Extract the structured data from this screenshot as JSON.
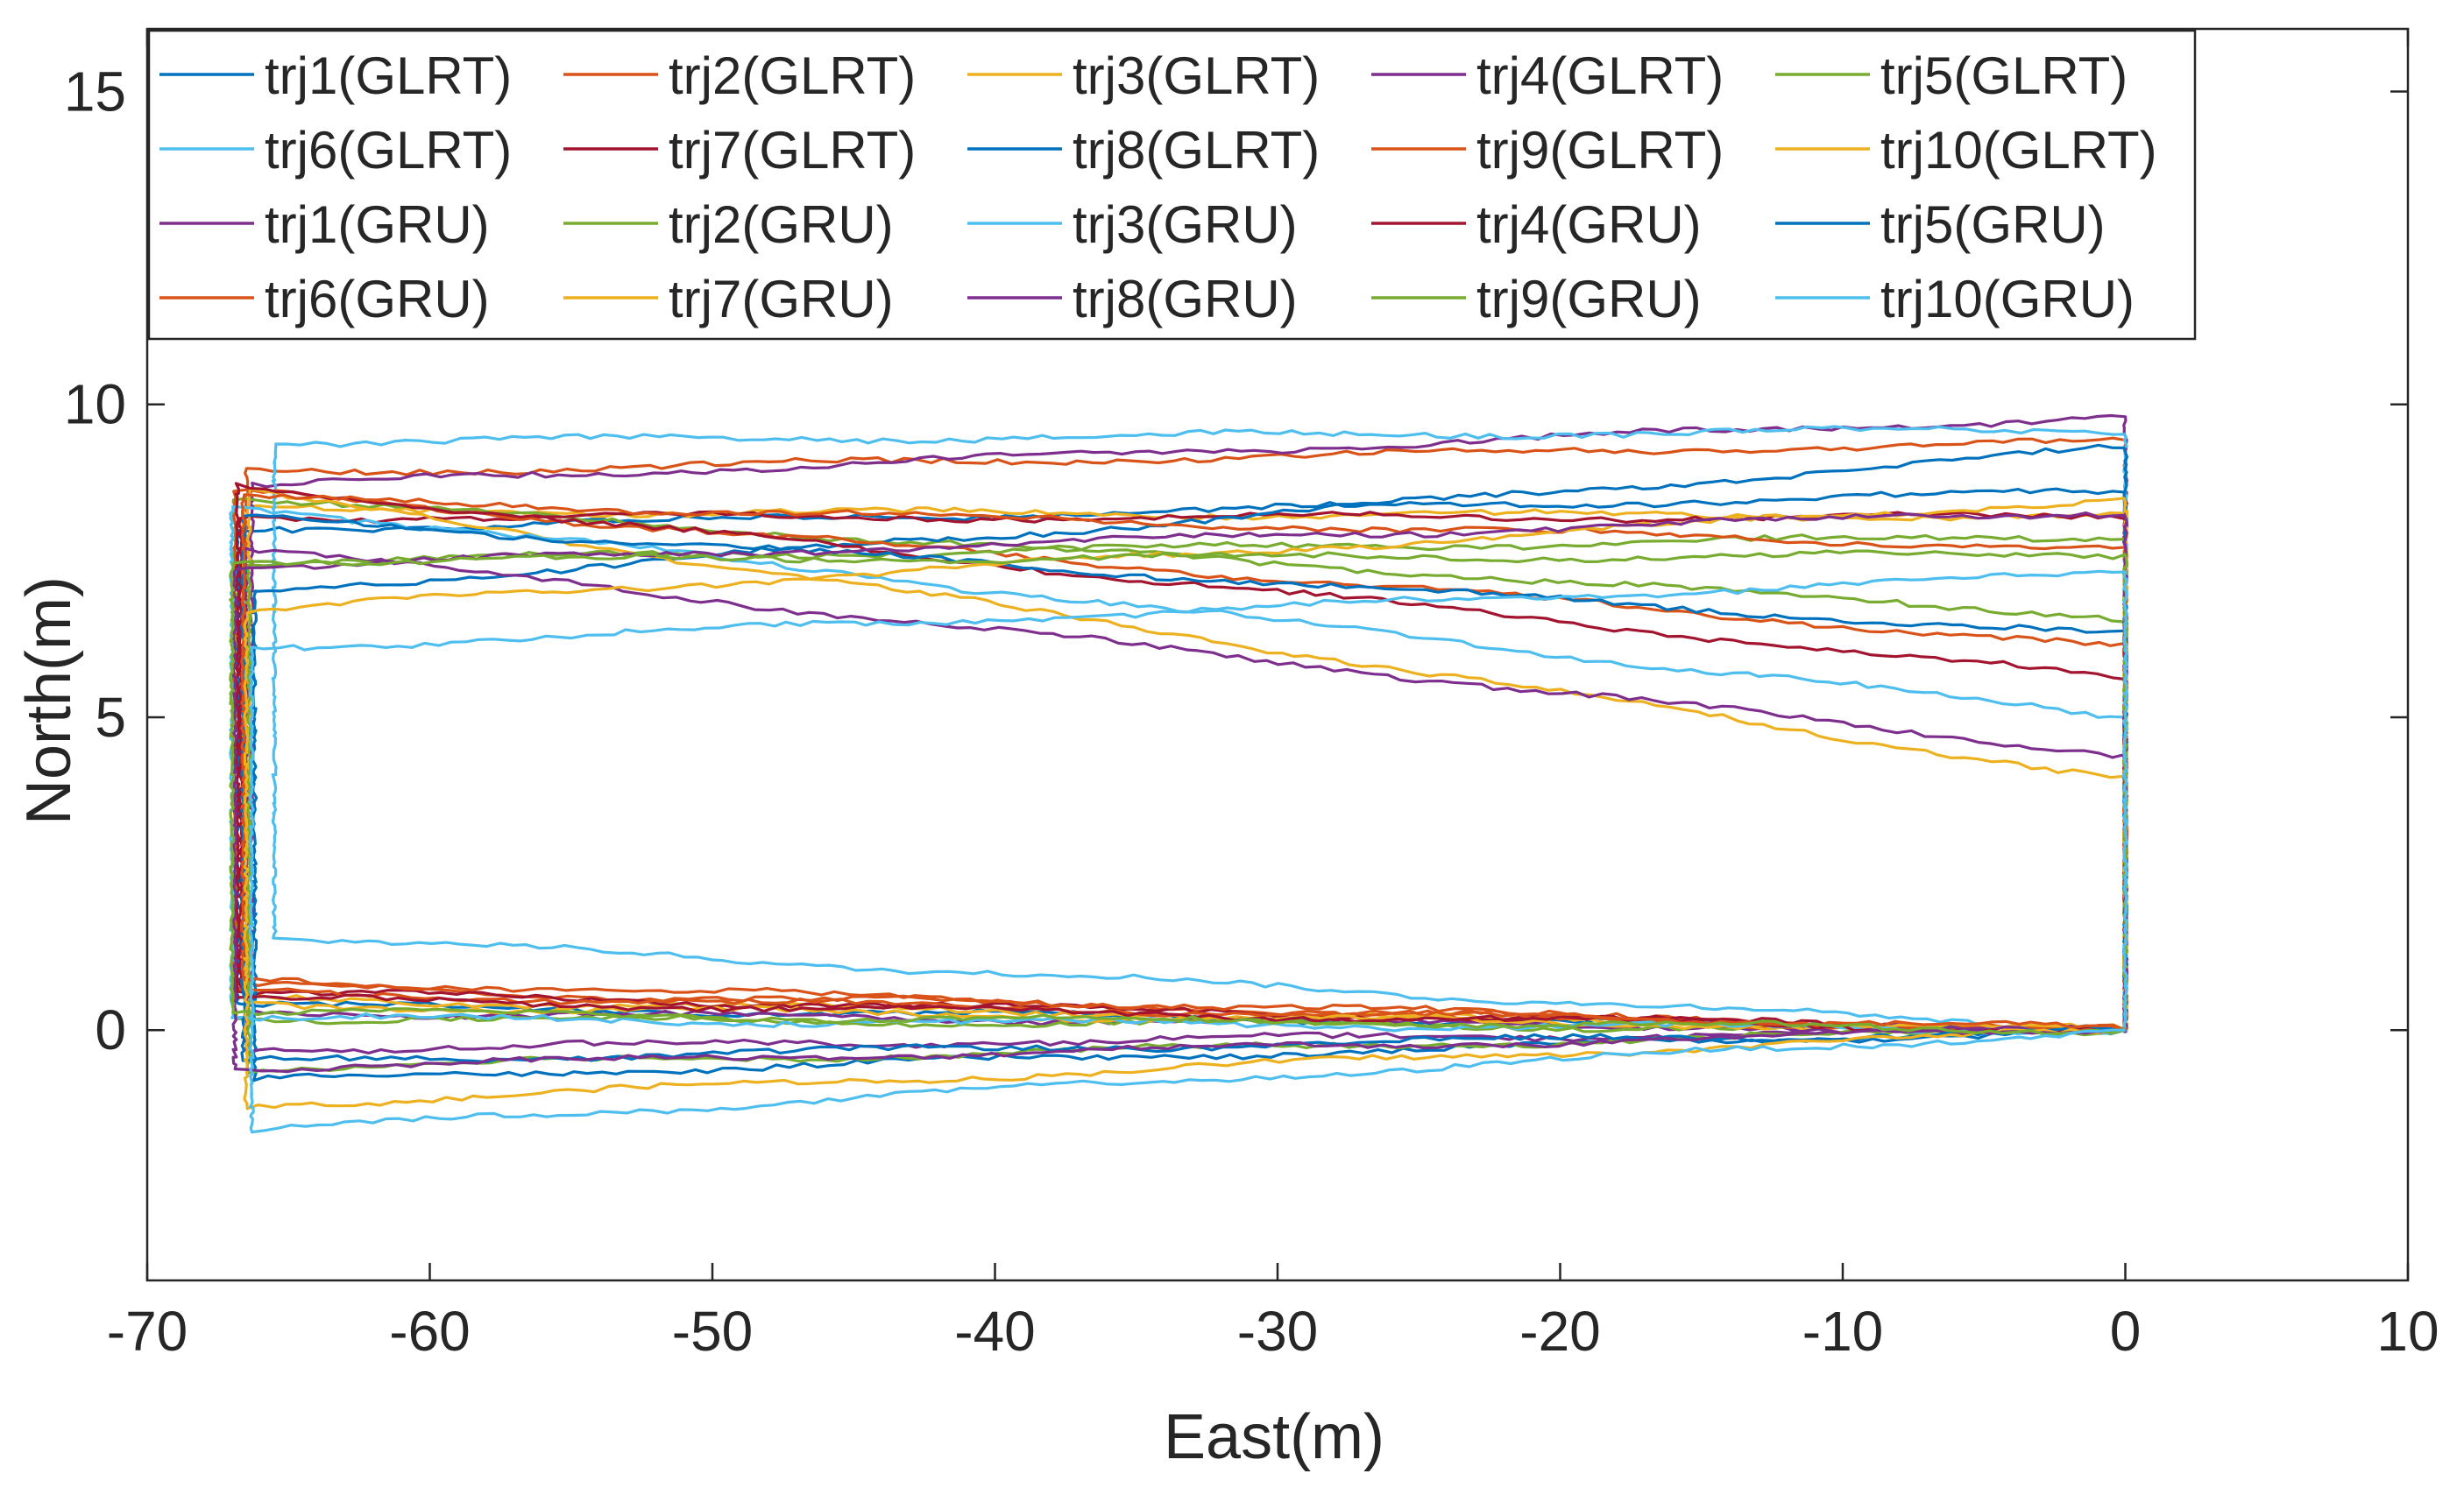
{
  "chart_data": {
    "type": "line",
    "title": "",
    "xlabel": "East(m)",
    "ylabel": "North(m)",
    "xlim": [
      -70,
      10
    ],
    "ylim": [
      -4,
      16
    ],
    "xticks": [
      -70,
      -60,
      -50,
      -40,
      -30,
      -20,
      -10,
      0,
      10
    ],
    "yticks": [
      0,
      5,
      10,
      15
    ],
    "xtick_labels": [
      "-70",
      "-60",
      "-50",
      "-40",
      "-30",
      "-20",
      "-10",
      "0",
      "10"
    ],
    "ytick_labels": [
      "0",
      "5",
      "10",
      "15"
    ],
    "grid": false,
    "legend_position": "top-left",
    "legend_columns": 5,
    "series": [
      {
        "name": "trj1(GLRT)",
        "color": "#0072BD",
        "points": [
          [
            0,
            0
          ],
          [
            0,
            8.6
          ],
          [
            -66.8,
            8.0
          ],
          [
            -66.8,
            0.4
          ],
          [
            0,
            0
          ]
        ]
      },
      {
        "name": "trj2(GLRT)",
        "color": "#D95319",
        "points": [
          [
            0,
            0
          ],
          [
            0,
            9.4
          ],
          [
            -66.5,
            8.9
          ],
          [
            -66.5,
            0.7
          ],
          [
            0,
            0
          ]
        ]
      },
      {
        "name": "trj3(GLRT)",
        "color": "#EDB120",
        "points": [
          [
            0,
            0
          ],
          [
            0,
            8.2
          ],
          [
            -66.6,
            8.3
          ],
          [
            -66.6,
            0.5
          ],
          [
            0,
            0
          ]
        ]
      },
      {
        "name": "trj4(GLRT)",
        "color": "#7E2F8E",
        "points": [
          [
            0,
            0
          ],
          [
            0,
            9.8
          ],
          [
            -66.3,
            8.7
          ],
          [
            -66.3,
            0.3
          ],
          [
            0,
            0
          ]
        ]
      },
      {
        "name": "trj5(GLRT)",
        "color": "#77AC30",
        "points": [
          [
            0,
            0
          ],
          [
            0,
            6.6
          ],
          [
            -66.9,
            8.5
          ],
          [
            -66.9,
            0.2
          ],
          [
            0,
            0
          ]
        ]
      },
      {
        "name": "trj6(GLRT)",
        "color": "#4DBEEE",
        "points": [
          [
            0,
            0
          ],
          [
            0,
            9.6
          ],
          [
            -65.5,
            9.4
          ],
          [
            -65.5,
            1.5
          ],
          [
            0,
            0
          ]
        ]
      },
      {
        "name": "trj7(GLRT)",
        "color": "#A2142F",
        "points": [
          [
            0,
            0
          ],
          [
            0,
            8.2
          ],
          [
            -66.7,
            8.2
          ],
          [
            -66.7,
            0.6
          ],
          [
            0,
            0
          ]
        ]
      },
      {
        "name": "trj8(GLRT)",
        "color": "#0072BD",
        "points": [
          [
            0,
            0
          ],
          [
            0,
            9.3
          ],
          [
            -66.2,
            7.0
          ],
          [
            -66.2,
            -0.8
          ],
          [
            0,
            0
          ]
        ]
      },
      {
        "name": "trj9(GLRT)",
        "color": "#D95319",
        "points": [
          [
            0,
            0
          ],
          [
            0,
            6.1
          ],
          [
            -66.9,
            8.6
          ],
          [
            -66.9,
            0.6
          ],
          [
            0,
            0
          ]
        ]
      },
      {
        "name": "trj10(GLRT)",
        "color": "#EDB120",
        "points": [
          [
            0,
            0
          ],
          [
            0,
            4.0
          ],
          [
            -66.4,
            8.6
          ],
          [
            -66.4,
            0.4
          ],
          [
            0,
            0
          ]
        ]
      },
      {
        "name": "trj1(GRU)",
        "color": "#7E2F8E",
        "points": [
          [
            0,
            0
          ],
          [
            0,
            4.4
          ],
          [
            -66.5,
            7.7
          ],
          [
            -66.5,
            -0.3
          ],
          [
            0,
            0
          ]
        ]
      },
      {
        "name": "trj2(GRU)",
        "color": "#77AC30",
        "points": [
          [
            0,
            0
          ],
          [
            0,
            7.9
          ],
          [
            -66.4,
            7.5
          ],
          [
            -66.4,
            -0.6
          ],
          [
            0,
            0
          ]
        ]
      },
      {
        "name": "trj3(GRU)",
        "color": "#4DBEEE",
        "points": [
          [
            0,
            0
          ],
          [
            0,
            5.0
          ],
          [
            -67.0,
            8.4
          ],
          [
            -67.0,
            0.2
          ],
          [
            0,
            0
          ]
        ]
      },
      {
        "name": "trj4(GRU)",
        "color": "#A2142F",
        "points": [
          [
            0,
            0
          ],
          [
            0,
            5.6
          ],
          [
            -66.8,
            8.7
          ],
          [
            -66.8,
            0.5
          ],
          [
            0,
            0
          ]
        ]
      },
      {
        "name": "trj5(GRU)",
        "color": "#0072BD",
        "points": [
          [
            0,
            0
          ],
          [
            0,
            6.3
          ],
          [
            -66.6,
            8.2
          ],
          [
            -66.6,
            -0.5
          ],
          [
            0,
            0
          ]
        ]
      },
      {
        "name": "trj6(GRU)",
        "color": "#D95319",
        "points": [
          [
            0,
            0
          ],
          [
            0,
            7.7
          ],
          [
            -66.6,
            8.5
          ],
          [
            -66.6,
            0.8
          ],
          [
            0,
            0
          ]
        ]
      },
      {
        "name": "trj7(GRU)",
        "color": "#EDB120",
        "points": [
          [
            0,
            0
          ],
          [
            0,
            8.5
          ],
          [
            -66.5,
            6.7
          ],
          [
            -66.5,
            -1.2
          ],
          [
            0,
            0
          ]
        ]
      },
      {
        "name": "trj8(GRU)",
        "color": "#7E2F8E",
        "points": [
          [
            0,
            0
          ],
          [
            0,
            8.3
          ],
          [
            -66.9,
            7.4
          ],
          [
            -66.9,
            -0.6
          ],
          [
            0,
            0
          ]
        ]
      },
      {
        "name": "trj9(GRU)",
        "color": "#77AC30",
        "points": [
          [
            0,
            0
          ],
          [
            0,
            7.6
          ],
          [
            -67.0,
            7.5
          ],
          [
            -67.0,
            0.3
          ],
          [
            0,
            0
          ]
        ]
      },
      {
        "name": "trj10(GRU)",
        "color": "#4DBEEE",
        "points": [
          [
            0,
            0
          ],
          [
            0,
            7.3
          ],
          [
            -66.3,
            6.1
          ],
          [
            -66.3,
            -1.6
          ],
          [
            0,
            0
          ]
        ]
      }
    ]
  }
}
